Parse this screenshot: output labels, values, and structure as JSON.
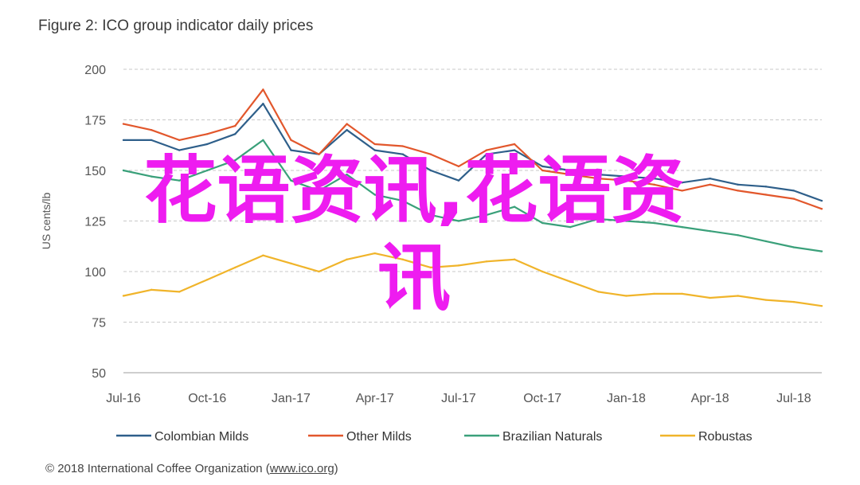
{
  "figure_title": "Figure 2: ICO group indicator daily prices",
  "footer": {
    "prefix": "© 2018 International Coffee Organization (",
    "link": "www.ico.org",
    "suffix": ")"
  },
  "watermark": {
    "line1": "花语资讯,花语资",
    "line2": "讯"
  },
  "chart_data": {
    "type": "line",
    "title": "Figure 2: ICO group indicator daily prices",
    "xlabel": "",
    "ylabel": "US cents/lb",
    "ylim": [
      50,
      200
    ],
    "yticks": [
      50,
      75,
      100,
      125,
      150,
      175,
      200
    ],
    "x_ticks": [
      "Jul-16",
      "Oct-16",
      "Jan-17",
      "Apr-17",
      "Jul-17",
      "Oct-17",
      "Jan-18",
      "Apr-18",
      "Jul-18"
    ],
    "x": [
      "Jul-16",
      "Aug-16",
      "Sep-16",
      "Oct-16",
      "Nov-16",
      "Dec-16",
      "Jan-17",
      "Feb-17",
      "Mar-17",
      "Apr-17",
      "May-17",
      "Jun-17",
      "Jul-17",
      "Aug-17",
      "Sep-17",
      "Oct-17",
      "Nov-17",
      "Dec-17",
      "Jan-18",
      "Feb-18",
      "Mar-18",
      "Apr-18",
      "May-18",
      "Jun-18",
      "Jul-18",
      "Aug-18"
    ],
    "series": [
      {
        "name": "Colombian Milds",
        "color": "#2e5f8a",
        "values": [
          165,
          165,
          160,
          163,
          168,
          183,
          160,
          158,
          170,
          160,
          158,
          150,
          145,
          158,
          160,
          152,
          150,
          148,
          147,
          146,
          144,
          146,
          143,
          142,
          140,
          135
        ]
      },
      {
        "name": "Other Milds",
        "color": "#e2572c",
        "values": [
          173,
          170,
          165,
          168,
          172,
          190,
          165,
          158,
          173,
          163,
          162,
          158,
          152,
          160,
          163,
          150,
          148,
          146,
          145,
          143,
          140,
          143,
          140,
          138,
          136,
          131
        ]
      },
      {
        "name": "Brazilian Naturals",
        "color": "#3aa07a",
        "values": [
          150,
          147,
          145,
          150,
          155,
          165,
          145,
          140,
          148,
          138,
          135,
          128,
          125,
          128,
          132,
          124,
          122,
          126,
          125,
          124,
          122,
          120,
          118,
          115,
          112,
          110
        ]
      },
      {
        "name": "Robustas",
        "color": "#f0b42a",
        "values": [
          88,
          91,
          90,
          96,
          102,
          108,
          104,
          100,
          106,
          109,
          106,
          102,
          103,
          105,
          106,
          100,
          95,
          90,
          88,
          89,
          89,
          87,
          88,
          86,
          85,
          83
        ]
      }
    ],
    "grid": "horizontal dashed",
    "legend": "bottom"
  }
}
